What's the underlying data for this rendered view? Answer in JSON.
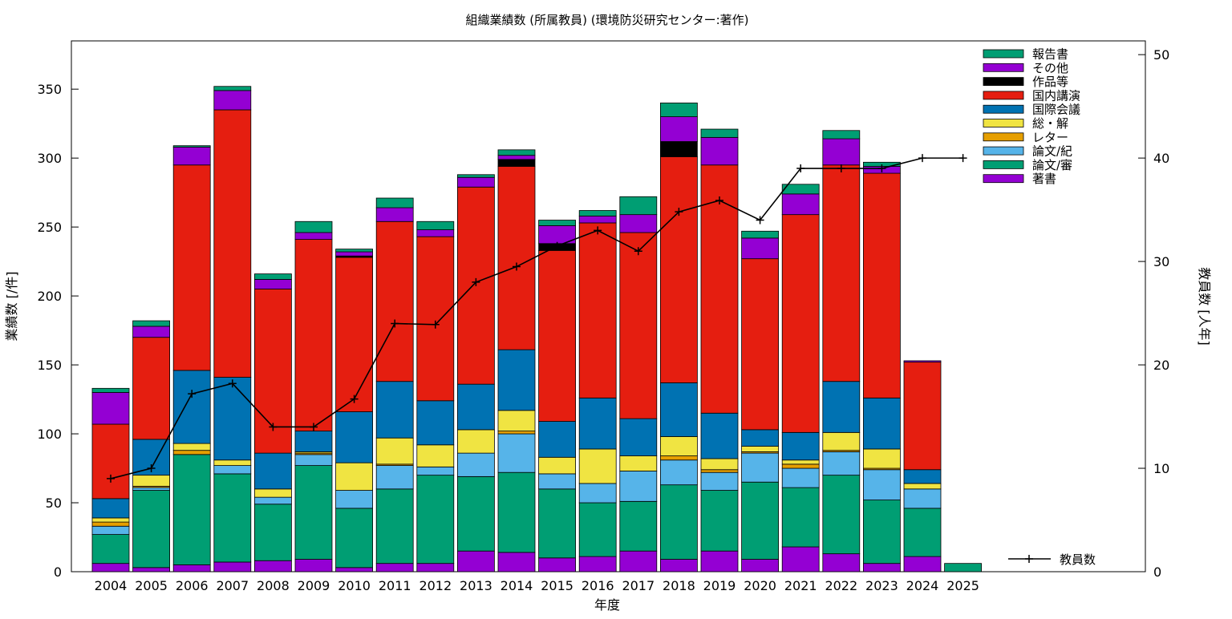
{
  "chart_data": {
    "type": "bar",
    "stacked": true,
    "title": "組織業績数 (所属教員) (環境防災研究センター:著作)",
    "xlabel": "年度",
    "ylabel": "業績数 [/件]",
    "y2label": "教員数 [人年]",
    "ylim": [
      0,
      385
    ],
    "y2lim": [
      0,
      51.33
    ],
    "yticks": [
      "0",
      "50",
      "100",
      "150",
      "200",
      "250",
      "300",
      "350"
    ],
    "y2ticks": [
      "0",
      "10",
      "20",
      "30",
      "40",
      "50"
    ],
    "legend_position": "top-right",
    "categories": [
      "2004",
      "2005",
      "2006",
      "2007",
      "2008",
      "2009",
      "2010",
      "2011",
      "2012",
      "2013",
      "2014",
      "2015",
      "2016",
      "2017",
      "2018",
      "2019",
      "2020",
      "2021",
      "2022",
      "2023",
      "2024",
      "2025"
    ],
    "series": [
      {
        "name": "著書",
        "color": "#9400d3",
        "values": [
          6,
          3,
          5,
          7,
          8,
          9,
          3,
          6,
          6,
          15,
          14,
          10,
          11,
          15,
          9,
          15,
          9,
          18,
          13,
          6,
          11,
          0
        ]
      },
      {
        "name": "論文/審",
        "color": "#009e73",
        "values": [
          21,
          56,
          80,
          64,
          41,
          68,
          43,
          54,
          64,
          54,
          58,
          50,
          39,
          36,
          54,
          44,
          56,
          43,
          57,
          46,
          35,
          6
        ]
      },
      {
        "name": "論文/紀",
        "color": "#56b4e9",
        "values": [
          6,
          2,
          0,
          6,
          5,
          8,
          13,
          17,
          6,
          17,
          28,
          11,
          14,
          22,
          18,
          13,
          21,
          14,
          17,
          22,
          14,
          0
        ]
      },
      {
        "name": "レター",
        "color": "#e69f00",
        "values": [
          3,
          1,
          3,
          0,
          0,
          1,
          0,
          1,
          0,
          0,
          2,
          0,
          0,
          0,
          3,
          2,
          1,
          3,
          1,
          1,
          0,
          0
        ]
      },
      {
        "name": "総・解",
        "color": "#f0e442",
        "values": [
          3,
          8,
          5,
          4,
          6,
          1,
          20,
          19,
          16,
          17,
          15,
          12,
          25,
          11,
          14,
          8,
          4,
          3,
          13,
          14,
          4,
          0
        ]
      },
      {
        "name": "国際会議",
        "color": "#0072b2",
        "values": [
          14,
          26,
          53,
          60,
          26,
          15,
          37,
          41,
          32,
          33,
          44,
          26,
          37,
          27,
          39,
          33,
          12,
          20,
          37,
          37,
          10,
          0
        ]
      },
      {
        "name": "国内講演",
        "color": "#e51e10",
        "values": [
          54,
          74,
          149,
          194,
          119,
          139,
          112,
          116,
          119,
          143,
          133,
          124,
          127,
          135,
          164,
          180,
          124,
          158,
          157,
          163,
          78,
          0
        ]
      },
      {
        "name": "作品等",
        "color": "#000000",
        "values": [
          0,
          0,
          0,
          0,
          0,
          0,
          1,
          0,
          0,
          0,
          5,
          5,
          0,
          0,
          11,
          0,
          0,
          0,
          0,
          0,
          0,
          0
        ]
      },
      {
        "name": "その他",
        "color": "#9400d3",
        "values": [
          23,
          8,
          13,
          14,
          7,
          5,
          3,
          10,
          5,
          7,
          3,
          13,
          5,
          13,
          18,
          20,
          15,
          15,
          19,
          5,
          1,
          0
        ]
      },
      {
        "name": "報告書",
        "color": "#009e73",
        "values": [
          3,
          4,
          1,
          3,
          4,
          8,
          2,
          7,
          6,
          2,
          4,
          4,
          4,
          13,
          10,
          6,
          5,
          7,
          6,
          3,
          0,
          0
        ]
      }
    ],
    "line_series": {
      "name": "教員数",
      "color": "#000000",
      "axis": "y2",
      "values": [
        9,
        10,
        17.2,
        18.2,
        14,
        14,
        16.7,
        24,
        23.9,
        28,
        29.5,
        31.5,
        33,
        31,
        34.8,
        35.9,
        34,
        39,
        39,
        39,
        40,
        40
      ]
    }
  }
}
